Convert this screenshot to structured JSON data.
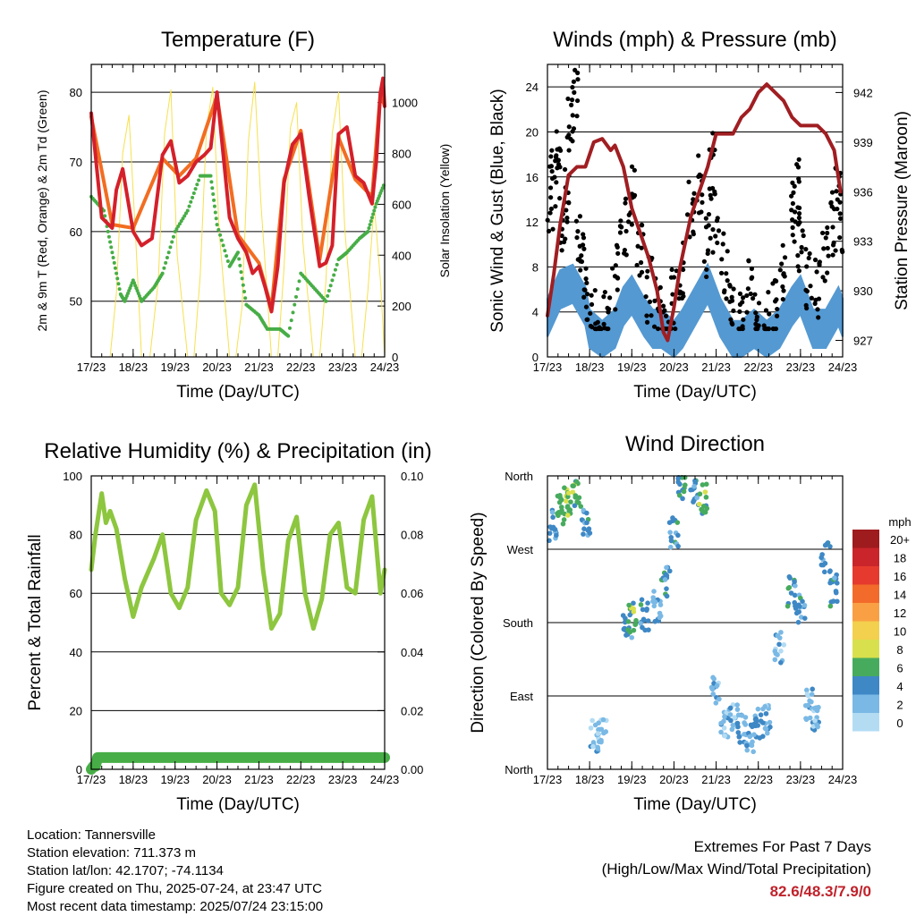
{
  "chart_data": [
    {
      "type": "line",
      "title": "Temperature (F)",
      "xlabel": "Time (Day/UTC)",
      "ylabel": "2m & 9m T (Red, Orange) & 2m Td (Green)",
      "ylabel_right": "Solar Insolation (Yellow)",
      "ylim": [
        42,
        84
      ],
      "ylim_right": [
        0,
        1150
      ],
      "yticks": [
        50,
        60,
        70,
        80
      ],
      "yticks_right": [
        0,
        200,
        400,
        600,
        800,
        1000
      ],
      "x_ticks": [
        "17/23",
        "18/23",
        "19/23",
        "20/23",
        "21/23",
        "22/23",
        "23/23",
        "24/23"
      ],
      "series": [
        {
          "name": "2m T",
          "color": "#d4202a",
          "x": [
            0,
            0.25,
            0.5,
            0.6,
            0.75,
            1.0,
            1.2,
            1.45,
            1.7,
            1.9,
            2.1,
            2.3,
            2.5,
            2.7,
            2.85,
            3.0,
            3.15,
            3.3,
            3.5,
            3.7,
            3.85,
            4.0,
            4.15,
            4.3,
            4.45,
            4.6,
            4.8,
            5.0,
            5.2,
            5.45,
            5.6,
            5.75,
            5.9,
            6.1,
            6.3,
            6.5,
            6.7,
            6.8,
            6.9,
            6.96,
            7.0
          ],
          "y": [
            77,
            62,
            60.5,
            66,
            69,
            60,
            58,
            59,
            71,
            73,
            67,
            68,
            70,
            71,
            72,
            80,
            71,
            62,
            59,
            57,
            54,
            55,
            52,
            48.5,
            55,
            67,
            72.5,
            74,
            65,
            55,
            55.5,
            58,
            74,
            75,
            68,
            67,
            64,
            70,
            80,
            82,
            78
          ]
        },
        {
          "name": "9m T",
          "color": "#f26d21",
          "x": [
            0,
            0.5,
            1.0,
            1.7,
            2.1,
            2.5,
            3.0,
            3.5,
            4.0,
            4.3,
            4.6,
            5.0,
            5.45,
            5.9,
            6.3,
            6.7,
            6.9,
            7.0
          ],
          "y": [
            76.5,
            61,
            60.5,
            70.5,
            68,
            70.5,
            79.5,
            59.5,
            55.5,
            49,
            67.5,
            74.5,
            56,
            73.5,
            67.5,
            65,
            80,
            78
          ]
        },
        {
          "name": "2m Td",
          "color": "#47ad46",
          "x": [
            0,
            0.3,
            0.5,
            0.7,
            0.8,
            1.0,
            1.2,
            1.5,
            1.7,
            2.0,
            2.3,
            2.6,
            2.85,
            3.0,
            3.3,
            3.5,
            3.7,
            4.0,
            4.2,
            4.5,
            4.7,
            5.0,
            5.3,
            5.6,
            5.9,
            6.1,
            6.4,
            6.6,
            6.8,
            7.0
          ],
          "y": [
            65,
            63,
            57,
            51,
            50,
            53,
            50,
            52,
            54,
            60,
            63,
            68,
            68,
            61,
            55,
            57,
            49.5,
            48,
            46,
            46,
            45,
            54,
            52,
            50,
            56,
            57,
            59,
            60,
            64,
            67
          ]
        },
        {
          "name": "Solar Insolation",
          "color": "#f7e04f",
          "x": [
            0,
            0.45,
            0.6,
            0.75,
            0.9,
            1.05,
            1.2,
            1.4,
            1.6,
            1.75,
            1.9,
            2.05,
            2.3,
            2.45,
            2.6,
            2.75,
            2.9,
            3.05,
            3.3,
            3.45,
            3.6,
            3.75,
            3.9,
            4.05,
            4.3,
            4.45,
            4.6,
            4.75,
            4.9,
            5.05,
            5.3,
            5.45,
            5.6,
            5.75,
            5.9,
            6.05,
            6.3,
            6.45,
            6.6,
            6.75,
            6.9,
            7.0
          ],
          "y": [
            0,
            0,
            250,
            800,
            950,
            500,
            0,
            0,
            300,
            880,
            1050,
            400,
            0,
            0,
            320,
            900,
            1060,
            500,
            0,
            0,
            200,
            850,
            1080,
            600,
            0,
            0,
            350,
            900,
            1000,
            450,
            0,
            0,
            300,
            880,
            1040,
            500,
            0,
            0,
            260,
            600,
            300,
            0
          ]
        }
      ]
    },
    {
      "type": "scatter",
      "title": "Winds (mph) & Pressure (mb)",
      "xlabel": "Time (Day/UTC)",
      "ylabel": "Sonic Wind & Gust (Blue, Black)",
      "ylabel_right": "Station Pressure (Maroon)",
      "ylim": [
        0,
        26
      ],
      "ylim_right": [
        926,
        943.7
      ],
      "yticks": [
        0,
        4,
        8,
        12,
        16,
        20,
        24
      ],
      "yticks_right": [
        927,
        930,
        933,
        936,
        939,
        942
      ],
      "x_ticks": [
        "17/23",
        "18/23",
        "19/23",
        "20/23",
        "21/23",
        "22/23",
        "23/23",
        "24/23"
      ],
      "series": [
        {
          "name": "Sonic Wind",
          "color": "#5499d2",
          "x": [
            0,
            0.3,
            0.6,
            0.9,
            1.0,
            1.3,
            1.6,
            1.8,
            2.0,
            2.3,
            2.5,
            2.7,
            3.0,
            3.2,
            3.5,
            3.8,
            4.1,
            4.4,
            4.6,
            4.9,
            5.2,
            5.5,
            5.8,
            6.0,
            6.3,
            6.6,
            6.9,
            7.0
          ],
          "y": [
            4,
            6.5,
            7,
            5,
            3,
            2,
            3,
            5,
            6,
            4,
            3,
            3,
            2,
            3,
            5,
            7,
            4,
            2,
            2,
            3,
            2,
            3,
            5,
            6,
            3,
            3,
            5,
            4
          ]
        },
        {
          "name": "Gust",
          "color": "#000000",
          "x": [
            0.05,
            0.15,
            0.25,
            0.35,
            0.45,
            0.55,
            0.65,
            0.75,
            0.85,
            1.0,
            1.2,
            1.4,
            1.6,
            1.8,
            2.0,
            2.2,
            2.4,
            2.6,
            2.8,
            3.0,
            3.2,
            3.4,
            3.6,
            3.8,
            3.9,
            4.0,
            4.2,
            4.4,
            4.6,
            4.8,
            5.0,
            5.2,
            5.4,
            5.6,
            5.8,
            5.9,
            6.0,
            6.2,
            6.4,
            6.6,
            6.8,
            6.9,
            7.0
          ],
          "y": [
            14,
            16,
            18,
            12,
            15,
            20,
            23,
            10,
            8,
            5,
            3,
            4,
            7,
            12,
            14,
            10,
            6,
            4,
            3,
            5,
            8,
            13,
            15,
            10,
            17,
            12,
            8,
            5,
            3,
            6,
            4,
            3,
            5,
            8,
            13,
            15,
            10,
            7,
            6,
            9,
            12,
            14,
            11
          ]
        },
        {
          "name": "Station Pressure",
          "color": "#a01e22",
          "x": [
            0,
            0.15,
            0.3,
            0.5,
            0.7,
            0.9,
            1.1,
            1.3,
            1.5,
            1.6,
            1.8,
            2.0,
            2.2,
            2.4,
            2.6,
            2.75,
            2.85,
            3.0,
            3.15,
            3.4,
            3.6,
            3.8,
            4.0,
            4.2,
            4.4,
            4.6,
            4.8,
            5.0,
            5.2,
            5.4,
            5.6,
            5.8,
            6.0,
            6.2,
            6.4,
            6.6,
            6.8,
            6.95
          ],
          "y": [
            928.5,
            931,
            934,
            937,
            937.5,
            937.5,
            939,
            939.2,
            938.5,
            938.8,
            937.5,
            935,
            933.5,
            932,
            930,
            927.5,
            927,
            929,
            931.5,
            934.5,
            936,
            937.5,
            939.5,
            939.5,
            939.5,
            940.5,
            941,
            942,
            942.5,
            942,
            941.5,
            940.5,
            940,
            940,
            940,
            939.5,
            938.5,
            936
          ]
        }
      ]
    },
    {
      "type": "line",
      "title": "Relative Humidity (%) & Precipitation (in)",
      "xlabel": "Time (Day/UTC)",
      "ylabel": "Percent & Total Rainfall",
      "ylim": [
        0,
        100
      ],
      "ylim_right": [
        0,
        0.1
      ],
      "yticks": [
        0,
        20,
        40,
        60,
        80,
        100
      ],
      "yticks_right": [
        "0.00",
        "0.02",
        "0.04",
        "0.06",
        "0.08",
        "0.10"
      ],
      "x_ticks": [
        "17/23",
        "18/23",
        "19/23",
        "20/23",
        "21/23",
        "22/23",
        "23/23",
        "24/23"
      ],
      "series": [
        {
          "name": "Relative Humidity",
          "color": "#8dc63f",
          "x": [
            0,
            0.1,
            0.25,
            0.35,
            0.45,
            0.6,
            0.8,
            1.0,
            1.2,
            1.5,
            1.7,
            1.9,
            2.1,
            2.3,
            2.5,
            2.75,
            2.95,
            3.1,
            3.3,
            3.5,
            3.7,
            3.9,
            4.1,
            4.3,
            4.5,
            4.7,
            4.9,
            5.1,
            5.3,
            5.5,
            5.7,
            5.9,
            6.1,
            6.3,
            6.5,
            6.7,
            6.9,
            7.0
          ],
          "y": [
            68,
            80,
            94,
            84,
            88,
            82,
            65,
            52,
            62,
            72,
            80,
            60,
            55,
            62,
            85,
            95,
            88,
            60,
            56,
            62,
            90,
            97,
            68,
            48,
            53,
            78,
            86,
            60,
            48,
            58,
            80,
            84,
            62,
            60,
            85,
            93,
            60,
            68
          ]
        },
        {
          "name": "Total Rainfall",
          "color": "#47ad46",
          "x": [
            0,
            0.05,
            0.1,
            0.15,
            7.0
          ],
          "y": [
            0,
            0.001,
            0.001,
            0.004,
            0.004
          ]
        }
      ]
    },
    {
      "type": "scatter",
      "title": "Wind Direction",
      "xlabel": "Time (Day/UTC)",
      "ylabel": "Direction (Colored By Speed)",
      "ylim": [
        0,
        360
      ],
      "y_tick_labels": [
        "North",
        "East",
        "South",
        "West",
        "North"
      ],
      "x_ticks": [
        "17/23",
        "18/23",
        "19/23",
        "20/23",
        "21/23",
        "22/23",
        "23/23",
        "24/23"
      ],
      "colorbar": {
        "unit": "mph",
        "labels": [
          "20+",
          "18",
          "16",
          "14",
          "12",
          "10",
          "8",
          "6",
          "4",
          "2",
          "0"
        ],
        "colors": [
          "#9e1b1e",
          "#c9252b",
          "#e63a2e",
          "#f26b2a",
          "#f9a044",
          "#f3d04d",
          "#d8e04d",
          "#47ab5e",
          "#3e88c5",
          "#7ab9e5",
          "#b3dcf3"
        ]
      },
      "points": [
        {
          "x": 0.1,
          "y": 300,
          "s": 4
        },
        {
          "x": 0.3,
          "y": 320,
          "s": 6
        },
        {
          "x": 0.5,
          "y": 330,
          "s": 7
        },
        {
          "x": 0.7,
          "y": 335,
          "s": 6
        },
        {
          "x": 0.9,
          "y": 300,
          "s": 4
        },
        {
          "x": 1.1,
          "y": 40,
          "s": 2
        },
        {
          "x": 1.3,
          "y": 45,
          "s": 2
        },
        {
          "x": 1.9,
          "y": 180,
          "s": 4
        },
        {
          "x": 2.0,
          "y": 185,
          "s": 6
        },
        {
          "x": 2.3,
          "y": 190,
          "s": 4
        },
        {
          "x": 2.6,
          "y": 200,
          "s": 3
        },
        {
          "x": 2.8,
          "y": 230,
          "s": 4
        },
        {
          "x": 3.0,
          "y": 290,
          "s": 4
        },
        {
          "x": 3.2,
          "y": 350,
          "s": 5
        },
        {
          "x": 3.5,
          "y": 340,
          "s": 4
        },
        {
          "x": 3.7,
          "y": 330,
          "s": 6
        },
        {
          "x": 4.0,
          "y": 100,
          "s": 2
        },
        {
          "x": 4.2,
          "y": 50,
          "s": 2
        },
        {
          "x": 4.4,
          "y": 60,
          "s": 2
        },
        {
          "x": 4.6,
          "y": 50,
          "s": 3
        },
        {
          "x": 4.8,
          "y": 40,
          "s": 2
        },
        {
          "x": 5.0,
          "y": 55,
          "s": 3
        },
        {
          "x": 5.2,
          "y": 60,
          "s": 2
        },
        {
          "x": 5.5,
          "y": 150,
          "s": 2
        },
        {
          "x": 5.8,
          "y": 220,
          "s": 4
        },
        {
          "x": 6.0,
          "y": 200,
          "s": 4
        },
        {
          "x": 6.2,
          "y": 80,
          "s": 2
        },
        {
          "x": 6.4,
          "y": 60,
          "s": 2
        },
        {
          "x": 6.6,
          "y": 260,
          "s": 4
        },
        {
          "x": 6.8,
          "y": 220,
          "s": 4
        }
      ]
    }
  ],
  "meta": {
    "location": "Location: Tannersville",
    "elevation": "Station elevation: 711.373 m",
    "latlon": "Station lat/lon: 42.1707; -74.1134",
    "created": "Figure created on Thu, 2025-07-24, at 23:47 UTC",
    "recent": "Most recent data timestamp: 2025/07/24 23:15:00"
  },
  "extremes": {
    "title": "Extremes For Past 7 Days",
    "subtitle": "(High/Low/Max Wind/Total Precipitation)",
    "values": "82.6/48.3/7.9/0"
  }
}
